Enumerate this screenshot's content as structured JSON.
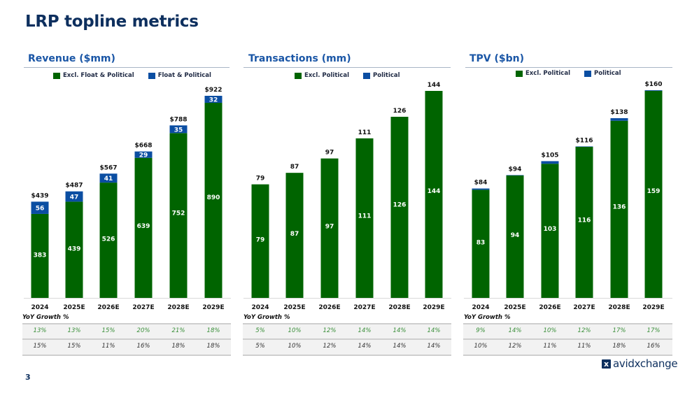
{
  "page": {
    "title": "LRP topline metrics",
    "page_number": "3",
    "logo_text": "avidxchange",
    "logo_mark": "x",
    "colors": {
      "green": "#006400",
      "blue": "#0b4ea2",
      "title": "#0d2f5e",
      "panel_title": "#1a56a6"
    }
  },
  "yoy_label": "YoY Growth %",
  "chart_data": [
    {
      "type": "bar",
      "stacked": true,
      "title": "Revenue ($mm)",
      "categories": [
        "2024",
        "2025E",
        "2026E",
        "2027E",
        "2028E",
        "2029E"
      ],
      "series": [
        {
          "name": "Excl. Float & Political",
          "color": "#006400",
          "values": [
            383,
            439,
            526,
            639,
            752,
            890
          ]
        },
        {
          "name": "Float & Political",
          "color": "#0b4ea2",
          "values": [
            56,
            47,
            41,
            29,
            35,
            32
          ]
        }
      ],
      "totals": [
        "$439",
        "$487",
        "$567",
        "$668",
        "$788",
        "$922"
      ],
      "segment_labels": [
        [
          "383",
          "439",
          "526",
          "639",
          "752",
          "890"
        ],
        [
          "56",
          "47",
          "41",
          "29",
          "35",
          "32"
        ]
      ],
      "ylim": [
        0,
        922
      ],
      "legend": "top-center",
      "yoy": [
        [
          "13%",
          "13%",
          "15%",
          "20%",
          "21%",
          "18%"
        ],
        [
          "15%",
          "15%",
          "11%",
          "16%",
          "18%",
          "18%"
        ]
      ]
    },
    {
      "type": "bar",
      "stacked": true,
      "title": "Transactions (mm)",
      "categories": [
        "2024",
        "2025E",
        "2026E",
        "2027E",
        "2028E",
        "2029E"
      ],
      "series": [
        {
          "name": "Excl. Political",
          "color": "#006400",
          "values": [
            79,
            87,
            97,
            111,
            126,
            144
          ]
        },
        {
          "name": "Political",
          "color": "#0b4ea2",
          "values": [
            0,
            0,
            0,
            0,
            0,
            0
          ]
        }
      ],
      "totals": [
        "79",
        "87",
        "97",
        "111",
        "126",
        "144"
      ],
      "segment_labels": [
        [
          "79",
          "87",
          "97",
          "111",
          "126",
          "144"
        ],
        [
          "",
          "",
          "",
          "",
          "",
          ""
        ]
      ],
      "ylim": [
        0,
        144
      ],
      "legend": "top-center",
      "yoy": [
        [
          "5%",
          "10%",
          "12%",
          "14%",
          "14%",
          "14%"
        ],
        [
          "5%",
          "10%",
          "12%",
          "14%",
          "14%",
          "14%"
        ]
      ]
    },
    {
      "type": "bar",
      "stacked": true,
      "title": "TPV ($bn)",
      "categories": [
        "2024",
        "2025E",
        "2026E",
        "2027E",
        "2028E",
        "2029E"
      ],
      "series": [
        {
          "name": "Excl. Political",
          "color": "#006400",
          "values": [
            83,
            94,
            103,
            116,
            136,
            159
          ]
        },
        {
          "name": "Political",
          "color": "#0b4ea2",
          "values": [
            1,
            0.3,
            2,
            0.3,
            2,
            0.5
          ]
        }
      ],
      "totals": [
        "$84",
        "$94",
        "$105",
        "$116",
        "$138",
        "$160"
      ],
      "segment_labels": [
        [
          "83",
          "94",
          "103",
          "116",
          "136",
          "159"
        ],
        [
          "",
          "",
          "",
          "",
          "",
          ""
        ]
      ],
      "ylim": [
        0,
        160
      ],
      "legend": "top-center",
      "yoy": [
        [
          "9%",
          "14%",
          "10%",
          "12%",
          "17%",
          "17%"
        ],
        [
          "10%",
          "12%",
          "11%",
          "11%",
          "18%",
          "16%"
        ]
      ]
    }
  ]
}
